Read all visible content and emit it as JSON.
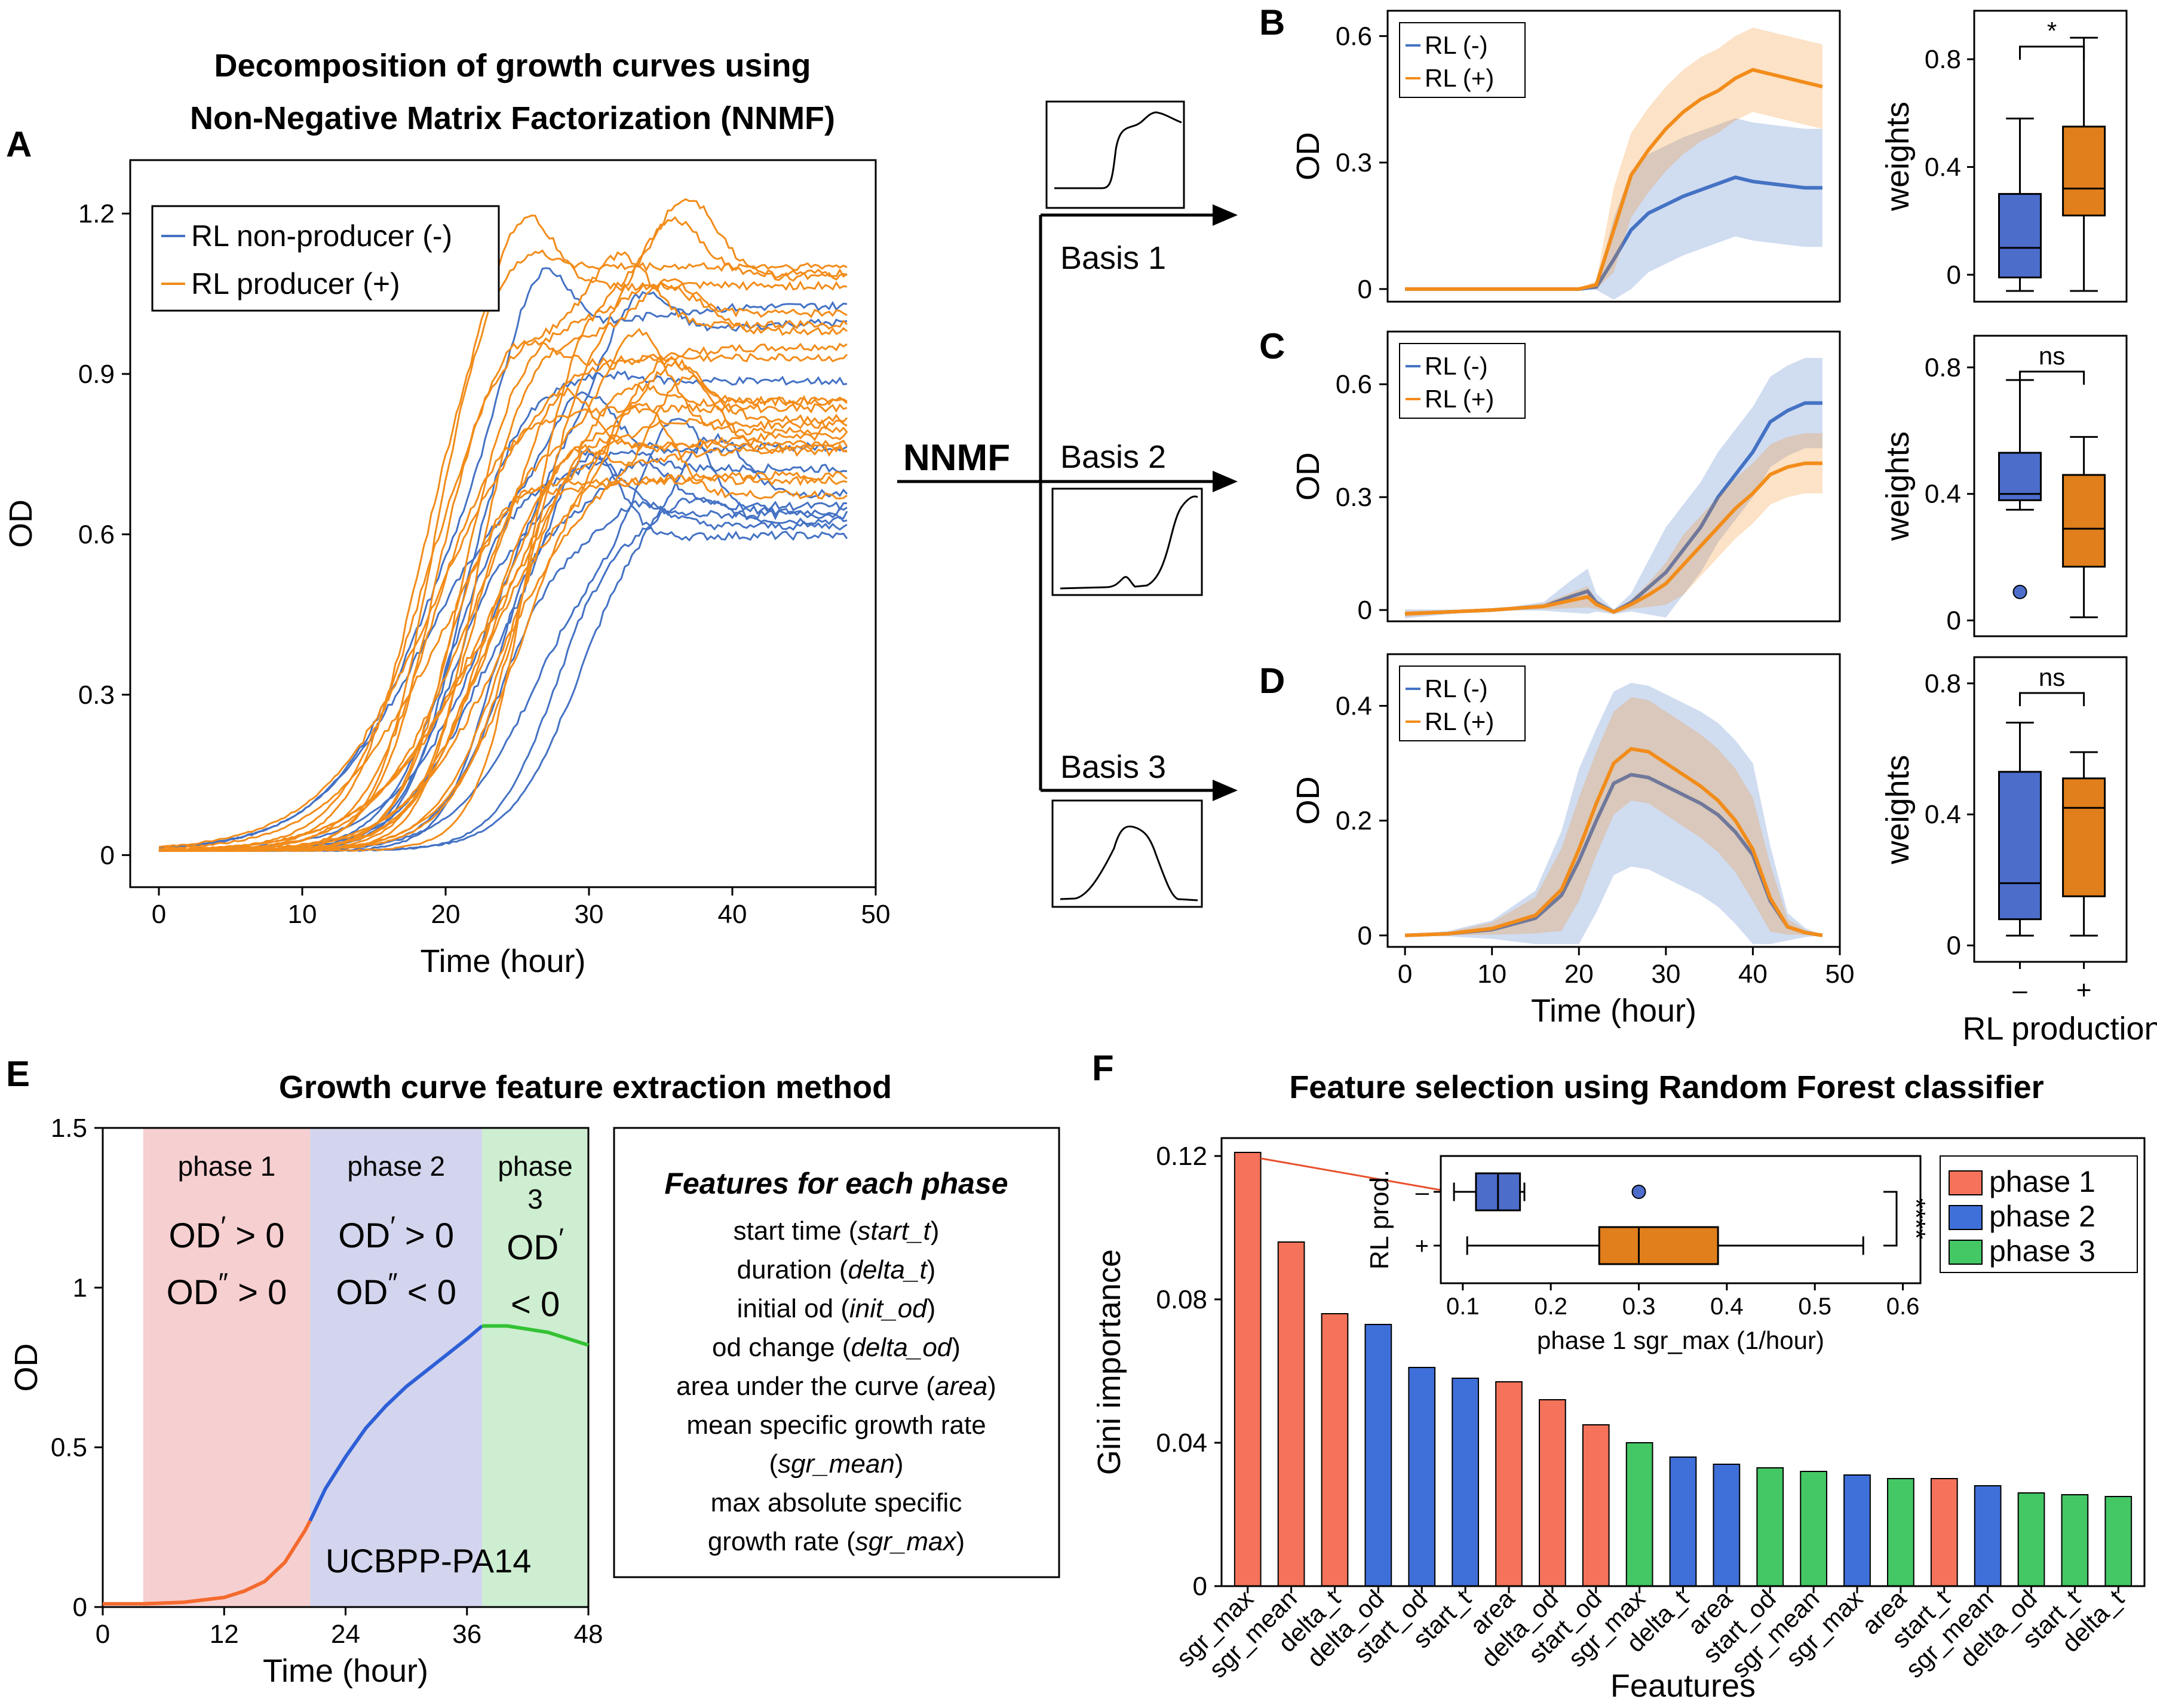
{
  "colors": {
    "blue": "#4472C4",
    "orange": "#F28C1A",
    "box_blue": "#4D6DCB",
    "box_orange": "#E07F1C",
    "phase1": "#F4735A",
    "phase2": "#3F6FD9",
    "phase3": "#44C765",
    "phase1_bg": "#F6CFD0",
    "phase2_bg": "#D3D5EE",
    "phase3_bg": "#CDEED0"
  },
  "panels": {
    "A": {
      "letter": "A",
      "title": [
        "Decomposition of growth curves using",
        "Non-Negative Matrix Factorization (NNMF)"
      ]
    },
    "B": {
      "letter": "B"
    },
    "C": {
      "letter": "C"
    },
    "D": {
      "letter": "D"
    },
    "E": {
      "letter": "E",
      "title": "Growth curve feature extraction method"
    },
    "F": {
      "letter": "F",
      "title": "Feature selection using Random Forest classifier"
    }
  },
  "nnmf": {
    "label": "NNMF",
    "basis_labels": [
      "Basis 1",
      "Basis 2",
      "Basis 3"
    ]
  },
  "chart_data": [
    {
      "id": "A",
      "type": "line",
      "xlabel": "Time (hour)",
      "ylabel": "OD",
      "xlim": [
        -2,
        50
      ],
      "ylim": [
        -0.06,
        1.3
      ],
      "xticks": [
        0,
        10,
        20,
        30,
        40,
        50
      ],
      "yticks": [
        0,
        0.3,
        0.6,
        0.9,
        1.2
      ],
      "legend": [
        "RL non-producer (-)",
        "RL producer (+)"
      ],
      "legend_position": "top-left",
      "series_style": {
        "RL non-producer (-)": {
          "color": "#4472C4",
          "count": 12
        },
        "RL producer (+)": {
          "color": "#F28C1A",
          "count": 22
        }
      },
      "note": "individual growth curves of isolates; each rises from ~0 and plateaus between ~0.5 and ~1.25 OD"
    },
    {
      "id": "B",
      "type": "line",
      "xlabel": "",
      "ylabel": "OD",
      "xlim": [
        -2,
        50
      ],
      "ylim": [
        -0.03,
        0.66
      ],
      "yticks": [
        0,
        0.3,
        0.6
      ],
      "legend": [
        "RL (-)",
        "RL (+)"
      ],
      "legend_position": "top-left",
      "x": [
        0,
        10,
        20,
        22,
        24,
        26,
        28,
        30,
        32,
        34,
        36,
        38,
        40,
        42,
        44,
        46,
        48
      ],
      "series": [
        {
          "name": "RL (-)",
          "mean": [
            0,
            0,
            0,
            0.005,
            0.07,
            0.14,
            0.18,
            0.2,
            0.22,
            0.235,
            0.25,
            0.265,
            0.255,
            0.25,
            0.245,
            0.24,
            0.24
          ],
          "band": 0.14
        },
        {
          "name": "RL (+)",
          "mean": [
            0,
            0,
            0,
            0.01,
            0.14,
            0.27,
            0.33,
            0.38,
            0.42,
            0.45,
            0.47,
            0.5,
            0.52,
            0.51,
            0.5,
            0.49,
            0.48
          ],
          "band": 0.1
        }
      ]
    },
    {
      "id": "B-box",
      "type": "box",
      "ylabel": "weights",
      "ylim": [
        -0.1,
        0.98
      ],
      "yticks": [
        0,
        0.4,
        0.8
      ],
      "categories": [
        "-",
        "+"
      ],
      "boxes": [
        {
          "min": -0.06,
          "q1": -0.01,
          "median": 0.1,
          "q3": 0.3,
          "max": 0.58
        },
        {
          "min": -0.06,
          "q1": 0.22,
          "median": 0.32,
          "q3": 0.55,
          "max": 0.88
        }
      ],
      "significance": "*"
    },
    {
      "id": "C",
      "type": "line",
      "xlabel": "",
      "ylabel": "OD",
      "xlim": [
        -2,
        50
      ],
      "ylim": [
        -0.03,
        0.74
      ],
      "yticks": [
        0,
        0.3,
        0.6
      ],
      "legend": [
        "RL (-)",
        "RL (+)"
      ],
      "legend_position": "top-left",
      "x": [
        0,
        10,
        16,
        19,
        21,
        22,
        24,
        26,
        28,
        30,
        32,
        34,
        36,
        38,
        40,
        42,
        44,
        46,
        48
      ],
      "series": [
        {
          "name": "RL (-)",
          "mean": [
            -0.01,
            0,
            0.01,
            0.035,
            0.05,
            0.02,
            -0.005,
            0.02,
            0.06,
            0.1,
            0.16,
            0.22,
            0.3,
            0.36,
            0.42,
            0.5,
            0.53,
            0.55,
            0.55
          ],
          "band": 0.12
        },
        {
          "name": "RL (+)",
          "mean": [
            -0.01,
            0,
            0.01,
            0.025,
            0.035,
            0.015,
            -0.005,
            0.015,
            0.04,
            0.07,
            0.12,
            0.17,
            0.22,
            0.27,
            0.31,
            0.36,
            0.38,
            0.39,
            0.39
          ],
          "band": 0.08
        }
      ]
    },
    {
      "id": "C-box",
      "type": "box",
      "ylabel": "weights",
      "ylim": [
        -0.05,
        0.9
      ],
      "yticks": [
        0,
        0.4,
        0.8
      ],
      "categories": [
        "-",
        "+"
      ],
      "boxes": [
        {
          "min": 0.35,
          "q1": 0.38,
          "median": 0.4,
          "q3": 0.53,
          "max": 0.76,
          "outliers": [
            0.09
          ]
        },
        {
          "min": 0.01,
          "q1": 0.17,
          "median": 0.29,
          "q3": 0.46,
          "max": 0.58
        }
      ],
      "significance": "ns"
    },
    {
      "id": "D",
      "type": "line",
      "xlabel": "Time (hour)",
      "ylabel": "OD",
      "xlim": [
        -2,
        50
      ],
      "ylim": [
        -0.02,
        0.49
      ],
      "xticks": [
        0,
        10,
        20,
        30,
        40,
        50
      ],
      "yticks": [
        0,
        0.2,
        0.4
      ],
      "legend": [
        "RL (-)",
        "RL (+)"
      ],
      "legend_position": "top-left",
      "x": [
        0,
        5,
        10,
        15,
        18,
        20,
        22,
        24,
        26,
        28,
        30,
        32,
        34,
        36,
        38,
        40,
        42,
        44,
        46,
        48
      ],
      "series": [
        {
          "name": "RL (-)",
          "mean": [
            0,
            0.003,
            0.01,
            0.03,
            0.07,
            0.13,
            0.2,
            0.265,
            0.28,
            0.275,
            0.26,
            0.245,
            0.23,
            0.21,
            0.18,
            0.14,
            0.06,
            0.015,
            0.005,
            0
          ],
          "band": 0.16
        },
        {
          "name": "RL (+)",
          "mean": [
            0,
            0.003,
            0.012,
            0.035,
            0.08,
            0.15,
            0.23,
            0.3,
            0.325,
            0.32,
            0.3,
            0.28,
            0.26,
            0.235,
            0.2,
            0.15,
            0.065,
            0.015,
            0.005,
            0
          ],
          "band": 0.09
        }
      ]
    },
    {
      "id": "D-box",
      "type": "box",
      "ylabel": "weights",
      "xlabel": "RL production",
      "ylim": [
        -0.05,
        0.88
      ],
      "yticks": [
        0,
        0.4,
        0.8
      ],
      "categories": [
        "–",
        "+"
      ],
      "boxes": [
        {
          "min": 0.03,
          "q1": 0.08,
          "median": 0.19,
          "q3": 0.53,
          "max": 0.68
        },
        {
          "min": 0.03,
          "q1": 0.15,
          "median": 0.42,
          "q3": 0.51,
          "max": 0.59
        }
      ],
      "significance": "ns"
    },
    {
      "id": "E",
      "type": "line",
      "xlabel": "Time (hour)",
      "ylabel": "OD",
      "xlim": [
        0,
        48
      ],
      "ylim": [
        0,
        1.5
      ],
      "xticks": [
        0,
        12,
        24,
        36,
        48
      ],
      "ytick_labels": [
        "0",
        "0.5",
        "1",
        "1.5"
      ],
      "yticks": [
        0,
        0.5,
        1,
        1.5
      ],
      "strain": "UCBPP-PA14",
      "phases": [
        {
          "label": [
            "phase 1"
          ],
          "start": 4,
          "end": 20.5,
          "conditions": [
            [
              "OD",
              "′",
              " > 0"
            ],
            [
              "OD",
              "″",
              " > 0"
            ]
          ],
          "color": "#F46A2E"
        },
        {
          "label": [
            "phase 2"
          ],
          "start": 20.5,
          "end": 37.5,
          "conditions": [
            [
              "OD",
              "′",
              " > 0"
            ],
            [
              "OD",
              "″",
              " < 0"
            ]
          ],
          "color": "#2E5FD6"
        },
        {
          "label": [
            "phase",
            "3"
          ],
          "start": 37.5,
          "end": 48,
          "conditions": [
            [
              "OD",
              "′",
              ""
            ],
            [
              "< 0",
              "",
              ""
            ]
          ],
          "color": "#34C234"
        }
      ],
      "x": [
        0,
        4,
        8,
        12,
        14,
        16,
        18,
        20,
        20.5,
        22,
        24,
        26,
        28,
        30,
        32,
        34,
        36,
        37.5,
        38,
        40,
        42,
        44,
        46,
        48
      ],
      "y": [
        0.01,
        0.01,
        0.015,
        0.03,
        0.05,
        0.08,
        0.14,
        0.24,
        0.27,
        0.37,
        0.47,
        0.56,
        0.63,
        0.69,
        0.74,
        0.79,
        0.84,
        0.88,
        0.88,
        0.88,
        0.87,
        0.86,
        0.84,
        0.82
      ]
    },
    {
      "id": "F",
      "type": "bar",
      "xlabel": "Feautures",
      "ylabel": "Gini importance",
      "ylim": [
        0,
        0.125
      ],
      "yticks": [
        0,
        0.04,
        0.08,
        0.12
      ],
      "ytick_labels": [
        "0",
        "0.04",
        "0.08",
        "0.12"
      ],
      "legend": [
        "phase 1",
        "phase 2",
        "phase 3"
      ],
      "legend_position": "top-right",
      "categories": [
        "sgr_max",
        "sgr_mean",
        "delta_t",
        "delta_od",
        "start_od",
        "start_t",
        "area",
        "delta_od",
        "start_od",
        "sgr_max",
        "delta_t",
        "area",
        "start_od",
        "sgr_mean",
        "sgr_max",
        "area",
        "start_t",
        "sgr_mean",
        "delta_od",
        "start_t",
        "delta_t"
      ],
      "values": [
        0.121,
        0.096,
        0.076,
        0.073,
        0.061,
        0.058,
        0.057,
        0.052,
        0.045,
        0.04,
        0.036,
        0.034,
        0.033,
        0.032,
        0.031,
        0.03,
        0.03,
        0.028,
        0.026,
        0.0255,
        0.025
      ],
      "phase": [
        1,
        1,
        1,
        2,
        2,
        2,
        1,
        1,
        1,
        3,
        2,
        2,
        3,
        3,
        2,
        3,
        1,
        2,
        3,
        3,
        3
      ]
    },
    {
      "id": "F-inset",
      "type": "box",
      "orientation": "horizontal",
      "xlabel": "phase 1 sgr_max (1/hour)",
      "ylabel": "RL prod.",
      "xlim": [
        0.075,
        0.62
      ],
      "xticks": [
        0.1,
        0.2,
        0.3,
        0.4,
        0.5,
        0.6
      ],
      "categories": [
        "–",
        "+"
      ],
      "boxes": [
        {
          "min": 0.09,
          "q1": 0.115,
          "median": 0.14,
          "q3": 0.165,
          "max": 0.17,
          "outliers": [
            0.3
          ]
        },
        {
          "min": 0.105,
          "q1": 0.255,
          "median": 0.3,
          "q3": 0.39,
          "max": 0.555
        }
      ],
      "significance": "****"
    }
  ],
  "features_box": {
    "title": "Features for each phase",
    "lines": [
      [
        "start time (",
        "start_t",
        ")"
      ],
      [
        "duration (",
        "delta_t",
        ")"
      ],
      [
        "initial od (",
        "init_od",
        ")"
      ],
      [
        "od change (",
        "delta_od",
        ")"
      ],
      [
        "area under the curve (",
        "area",
        ")"
      ],
      [
        "mean specific growth rate",
        "",
        ""
      ],
      [
        "(",
        "sgr_mean",
        ")"
      ],
      [
        "max absolute specific",
        "",
        ""
      ],
      [
        "growth rate (",
        "sgr_max",
        ")"
      ]
    ]
  }
}
